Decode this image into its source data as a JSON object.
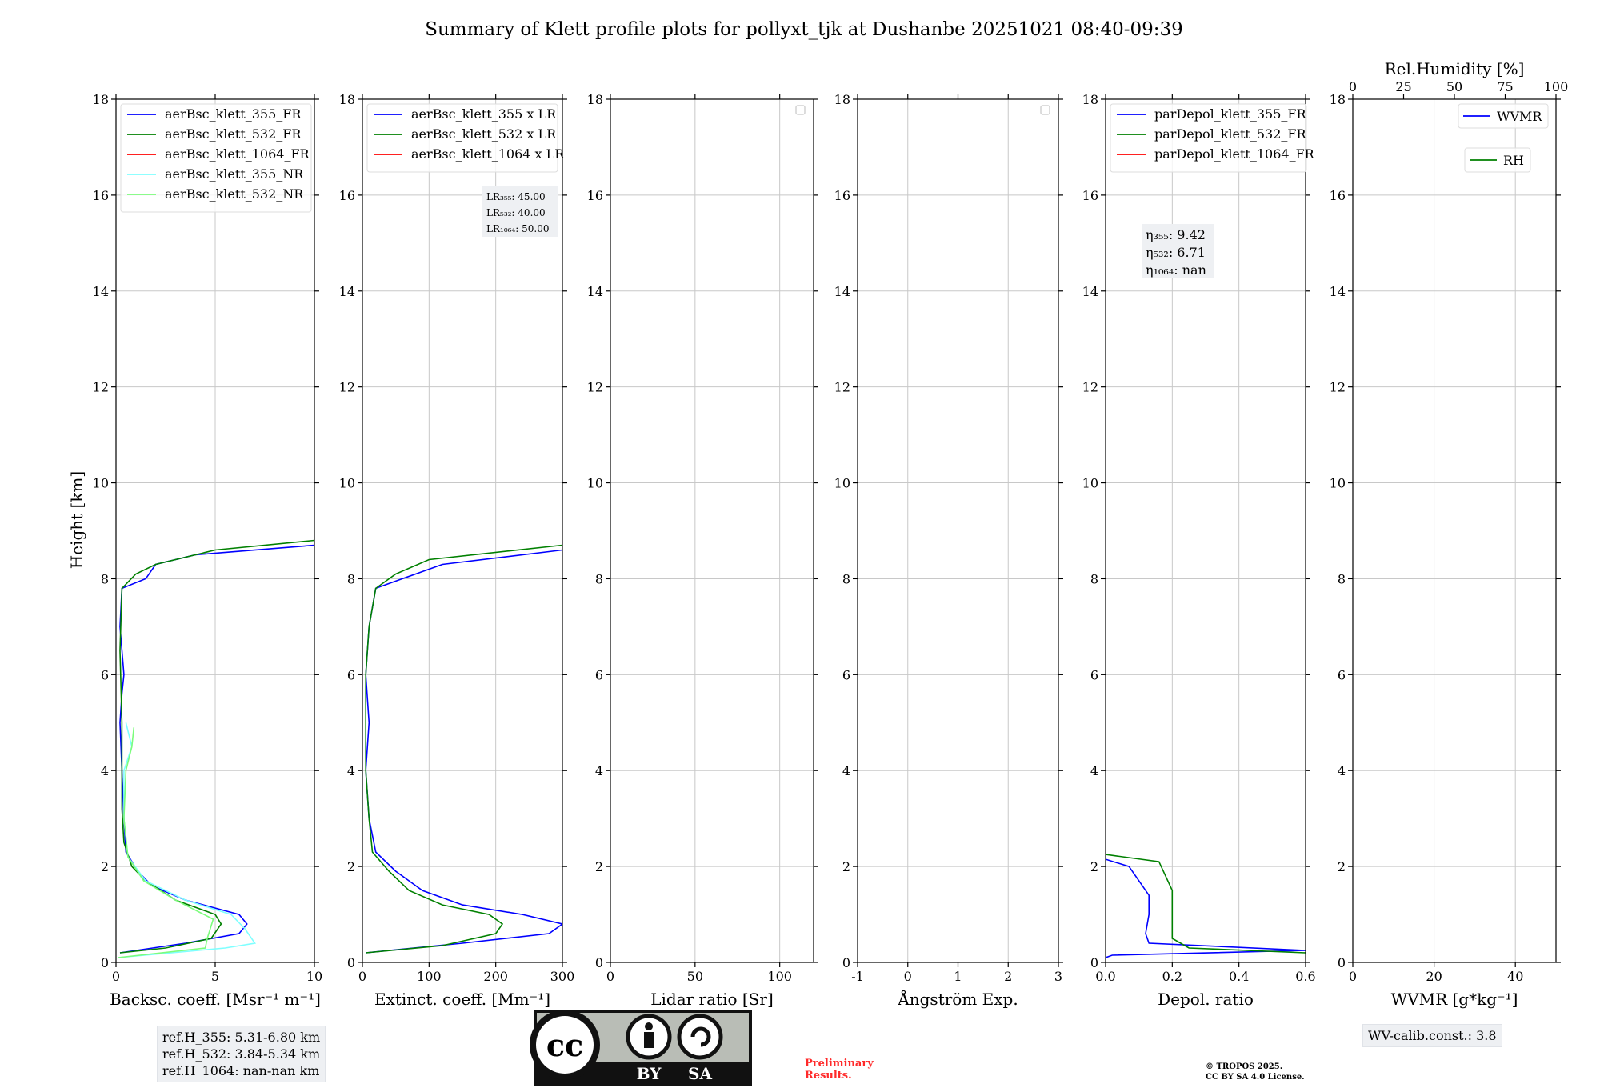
{
  "title": "Summary of Klett profile plots for pollyxt_tjk at Dushanbe 20251021 08:40-09:39",
  "y_axis_label": "Height [km]",
  "colors": {
    "c355": "#0000ff",
    "c532": "#008000",
    "c1064": "#ff0000",
    "c355nr": "#7fffff",
    "c532nr": "#7cfc7c",
    "grid": "#c8c8c8",
    "watermark": "#ff2a2a",
    "info_box": "#eef0f3"
  },
  "chart_data": [
    {
      "type": "line",
      "name": "backscatter",
      "xlabel": "Backsc. coeff. [Msr⁻¹ m⁻¹]",
      "xlim": [
        0,
        10
      ],
      "ylim": [
        0,
        18
      ],
      "xticks": [
        0,
        5,
        10
      ],
      "yticks": [
        0,
        2,
        4,
        6,
        8,
        10,
        12,
        14,
        16,
        18
      ],
      "legend": "top-left",
      "series": [
        {
          "name": "aerBsc_klett_355_FR",
          "color": "#0000ff",
          "points": [
            [
              0.2,
              0.2
            ],
            [
              3.5,
              0.4
            ],
            [
              6.2,
              0.6
            ],
            [
              6.6,
              0.8
            ],
            [
              6.2,
              1.0
            ],
            [
              3.5,
              1.3
            ],
            [
              1.8,
              1.6
            ],
            [
              1.1,
              1.9
            ],
            [
              0.5,
              2.3
            ],
            [
              0.4,
              3.0
            ],
            [
              0.3,
              4.0
            ],
            [
              0.2,
              5.0
            ],
            [
              0.3,
              5.6
            ],
            [
              0.4,
              6.0
            ],
            [
              0.2,
              7.0
            ],
            [
              0.3,
              7.8
            ],
            [
              1.5,
              8.0
            ],
            [
              2.0,
              8.3
            ],
            [
              4.0,
              8.5
            ],
            [
              10,
              8.7
            ]
          ]
        },
        {
          "name": "aerBsc_klett_532_FR",
          "color": "#008000",
          "points": [
            [
              0.2,
              0.2
            ],
            [
              2.5,
              0.3
            ],
            [
              4.8,
              0.5
            ],
            [
              5.3,
              0.8
            ],
            [
              5.0,
              1.0
            ],
            [
              3.0,
              1.3
            ],
            [
              1.5,
              1.7
            ],
            [
              0.8,
              2.0
            ],
            [
              0.4,
              2.5
            ],
            [
              0.3,
              3.2
            ],
            [
              0.3,
              4.0
            ],
            [
              0.3,
              5.0
            ],
            [
              0.2,
              6.5
            ],
            [
              0.3,
              7.8
            ],
            [
              1.0,
              8.1
            ],
            [
              2.0,
              8.3
            ],
            [
              5.0,
              8.6
            ],
            [
              10,
              8.8
            ]
          ]
        },
        {
          "name": "aerBsc_klett_1064_FR",
          "color": "#ff0000",
          "points": []
        },
        {
          "name": "aerBsc_klett_355_NR",
          "color": "#7fffff",
          "points": [
            [
              0.1,
              0.1
            ],
            [
              5.5,
              0.3
            ],
            [
              7.0,
              0.4
            ],
            [
              6.5,
              0.7
            ],
            [
              5.8,
              1.0
            ],
            [
              3.5,
              1.3
            ],
            [
              1.5,
              1.7
            ],
            [
              0.6,
              2.2
            ],
            [
              0.4,
              3.0
            ],
            [
              0.4,
              4.0
            ],
            [
              0.8,
              4.5
            ],
            [
              0.5,
              5.0
            ]
          ]
        },
        {
          "name": "aerBsc_klett_532_NR",
          "color": "#7cfc7c",
          "points": [
            [
              0.1,
              0.1
            ],
            [
              4.5,
              0.3
            ],
            [
              4.6,
              0.5
            ],
            [
              4.9,
              0.9
            ],
            [
              3.0,
              1.3
            ],
            [
              1.4,
              1.7
            ],
            [
              0.6,
              2.2
            ],
            [
              0.4,
              3.0
            ],
            [
              0.5,
              4.0
            ],
            [
              0.8,
              4.5
            ],
            [
              0.9,
              4.9
            ]
          ]
        }
      ]
    },
    {
      "type": "line",
      "name": "extinction",
      "xlabel": "Extinct. coeff. [Mm⁻¹]",
      "xlim": [
        0,
        300
      ],
      "ylim": [
        0,
        18
      ],
      "xticks": [
        0,
        100,
        200,
        300
      ],
      "yticks": [
        0,
        2,
        4,
        6,
        8,
        10,
        12,
        14,
        16,
        18
      ],
      "legend": "top-left",
      "lidar_ratios": [
        "LR₃₅₅: 45.00",
        "LR₅₃₂: 40.00",
        "LR₁₀₆₄: 50.00"
      ],
      "series": [
        {
          "name": "aerBsc_klett_355 x LR",
          "color": "#0000ff",
          "points": [
            [
              5,
              0.2
            ],
            [
              150,
              0.4
            ],
            [
              280,
              0.6
            ],
            [
              300,
              0.8
            ],
            [
              240,
              1.0
            ],
            [
              150,
              1.2
            ],
            [
              90,
              1.5
            ],
            [
              50,
              1.9
            ],
            [
              20,
              2.3
            ],
            [
              10,
              3.0
            ],
            [
              5,
              4.0
            ],
            [
              10,
              5.0
            ],
            [
              5,
              6.0
            ],
            [
              10,
              7.0
            ],
            [
              20,
              7.8
            ],
            [
              60,
              8.0
            ],
            [
              120,
              8.3
            ],
            [
              300,
              8.6
            ]
          ]
        },
        {
          "name": "aerBsc_klett_532 x LR",
          "color": "#008000",
          "points": [
            [
              5,
              0.2
            ],
            [
              120,
              0.35
            ],
            [
              200,
              0.6
            ],
            [
              210,
              0.8
            ],
            [
              190,
              1.0
            ],
            [
              120,
              1.2
            ],
            [
              70,
              1.5
            ],
            [
              40,
              1.9
            ],
            [
              15,
              2.3
            ],
            [
              10,
              3.0
            ],
            [
              5,
              4.0
            ],
            [
              5,
              6.0
            ],
            [
              10,
              7.0
            ],
            [
              20,
              7.8
            ],
            [
              50,
              8.1
            ],
            [
              100,
              8.4
            ],
            [
              300,
              8.7
            ]
          ]
        },
        {
          "name": "aerBsc_klett_1064 x LR",
          "color": "#ff0000",
          "points": []
        }
      ]
    },
    {
      "type": "line",
      "name": "lidar_ratio",
      "xlabel": "Lidar ratio [Sr]",
      "xlim": [
        0,
        120
      ],
      "ylim": [
        0,
        18
      ],
      "xticks": [
        0,
        50,
        100
      ],
      "yticks": [
        0,
        2,
        4,
        6,
        8,
        10,
        12,
        14,
        16,
        18
      ],
      "legend": "top-right",
      "series": []
    },
    {
      "type": "line",
      "name": "angstrom",
      "xlabel": "Ångström Exp.",
      "xlim": [
        -1,
        3
      ],
      "ylim": [
        0,
        18
      ],
      "xticks": [
        -1,
        0,
        1,
        2,
        3
      ],
      "yticks": [
        0,
        2,
        4,
        6,
        8,
        10,
        12,
        14,
        16,
        18
      ],
      "legend": "top-right",
      "series": []
    },
    {
      "type": "line",
      "name": "depol",
      "xlabel": "Depol. ratio",
      "xlim": [
        0,
        0.6
      ],
      "ylim": [
        0,
        18
      ],
      "xticks": [
        0.0,
        0.2,
        0.4,
        0.6
      ],
      "yticks": [
        0,
        2,
        4,
        6,
        8,
        10,
        12,
        14,
        16,
        18
      ],
      "legend": "top-left",
      "eta": [
        "η₃₅₅: 9.42",
        "η₅₃₂: 6.71",
        "η₁₀₆₄: nan"
      ],
      "series": [
        {
          "name": "parDepol_klett_355_FR",
          "color": "#0000ff",
          "points": [
            [
              0.0,
              0.1
            ],
            [
              0.02,
              0.15
            ],
            [
              0.6,
              0.25
            ],
            [
              0.13,
              0.4
            ],
            [
              0.12,
              0.6
            ],
            [
              0.13,
              1.0
            ],
            [
              0.13,
              1.4
            ],
            [
              0.1,
              1.7
            ],
            [
              0.07,
              2.0
            ],
            [
              0.0,
              2.15
            ]
          ]
        },
        {
          "name": "parDepol_klett_532_FR",
          "color": "#008000",
          "points": [
            [
              0.6,
              0.2
            ],
            [
              0.25,
              0.3
            ],
            [
              0.2,
              0.5
            ],
            [
              0.2,
              1.0
            ],
            [
              0.2,
              1.5
            ],
            [
              0.18,
              1.8
            ],
            [
              0.16,
              2.1
            ],
            [
              0.0,
              2.25
            ]
          ]
        },
        {
          "name": "parDepol_klett_1064_FR",
          "color": "#ff0000",
          "points": []
        }
      ]
    },
    {
      "type": "line",
      "name": "wvmr",
      "xlabel": "WVMR [g*kg⁻¹]",
      "xlim": [
        0,
        50
      ],
      "ylim": [
        0,
        18
      ],
      "xticks": [
        0,
        20,
        40
      ],
      "yticks": [
        0,
        2,
        4,
        6,
        8,
        10,
        12,
        14,
        16,
        18
      ],
      "top_axis_label": "Rel.Humidity [%]",
      "top_xlim": [
        0,
        100
      ],
      "top_xticks": [
        0,
        25,
        50,
        75,
        100
      ],
      "legend": "top-right",
      "series": [
        {
          "name": "WVMR",
          "color": "#0000ff",
          "points": []
        },
        {
          "name": "RH",
          "color": "#008000",
          "points": []
        }
      ]
    }
  ],
  "info": {
    "ref_heights": [
      "ref.H_355: 5.31-6.80 km",
      "ref.H_532: 3.84-5.34 km",
      "ref.H_1064: nan-nan km"
    ],
    "preliminary": [
      "Preliminary",
      "Results."
    ],
    "copyright": [
      "© TROPOS 2025.",
      "CC BY SA 4.0 License."
    ],
    "wv_calib": "WV-calib.const.: 3.8",
    "cc_badge": {
      "by": "BY",
      "sa": "SA",
      "cc": "cc"
    }
  }
}
